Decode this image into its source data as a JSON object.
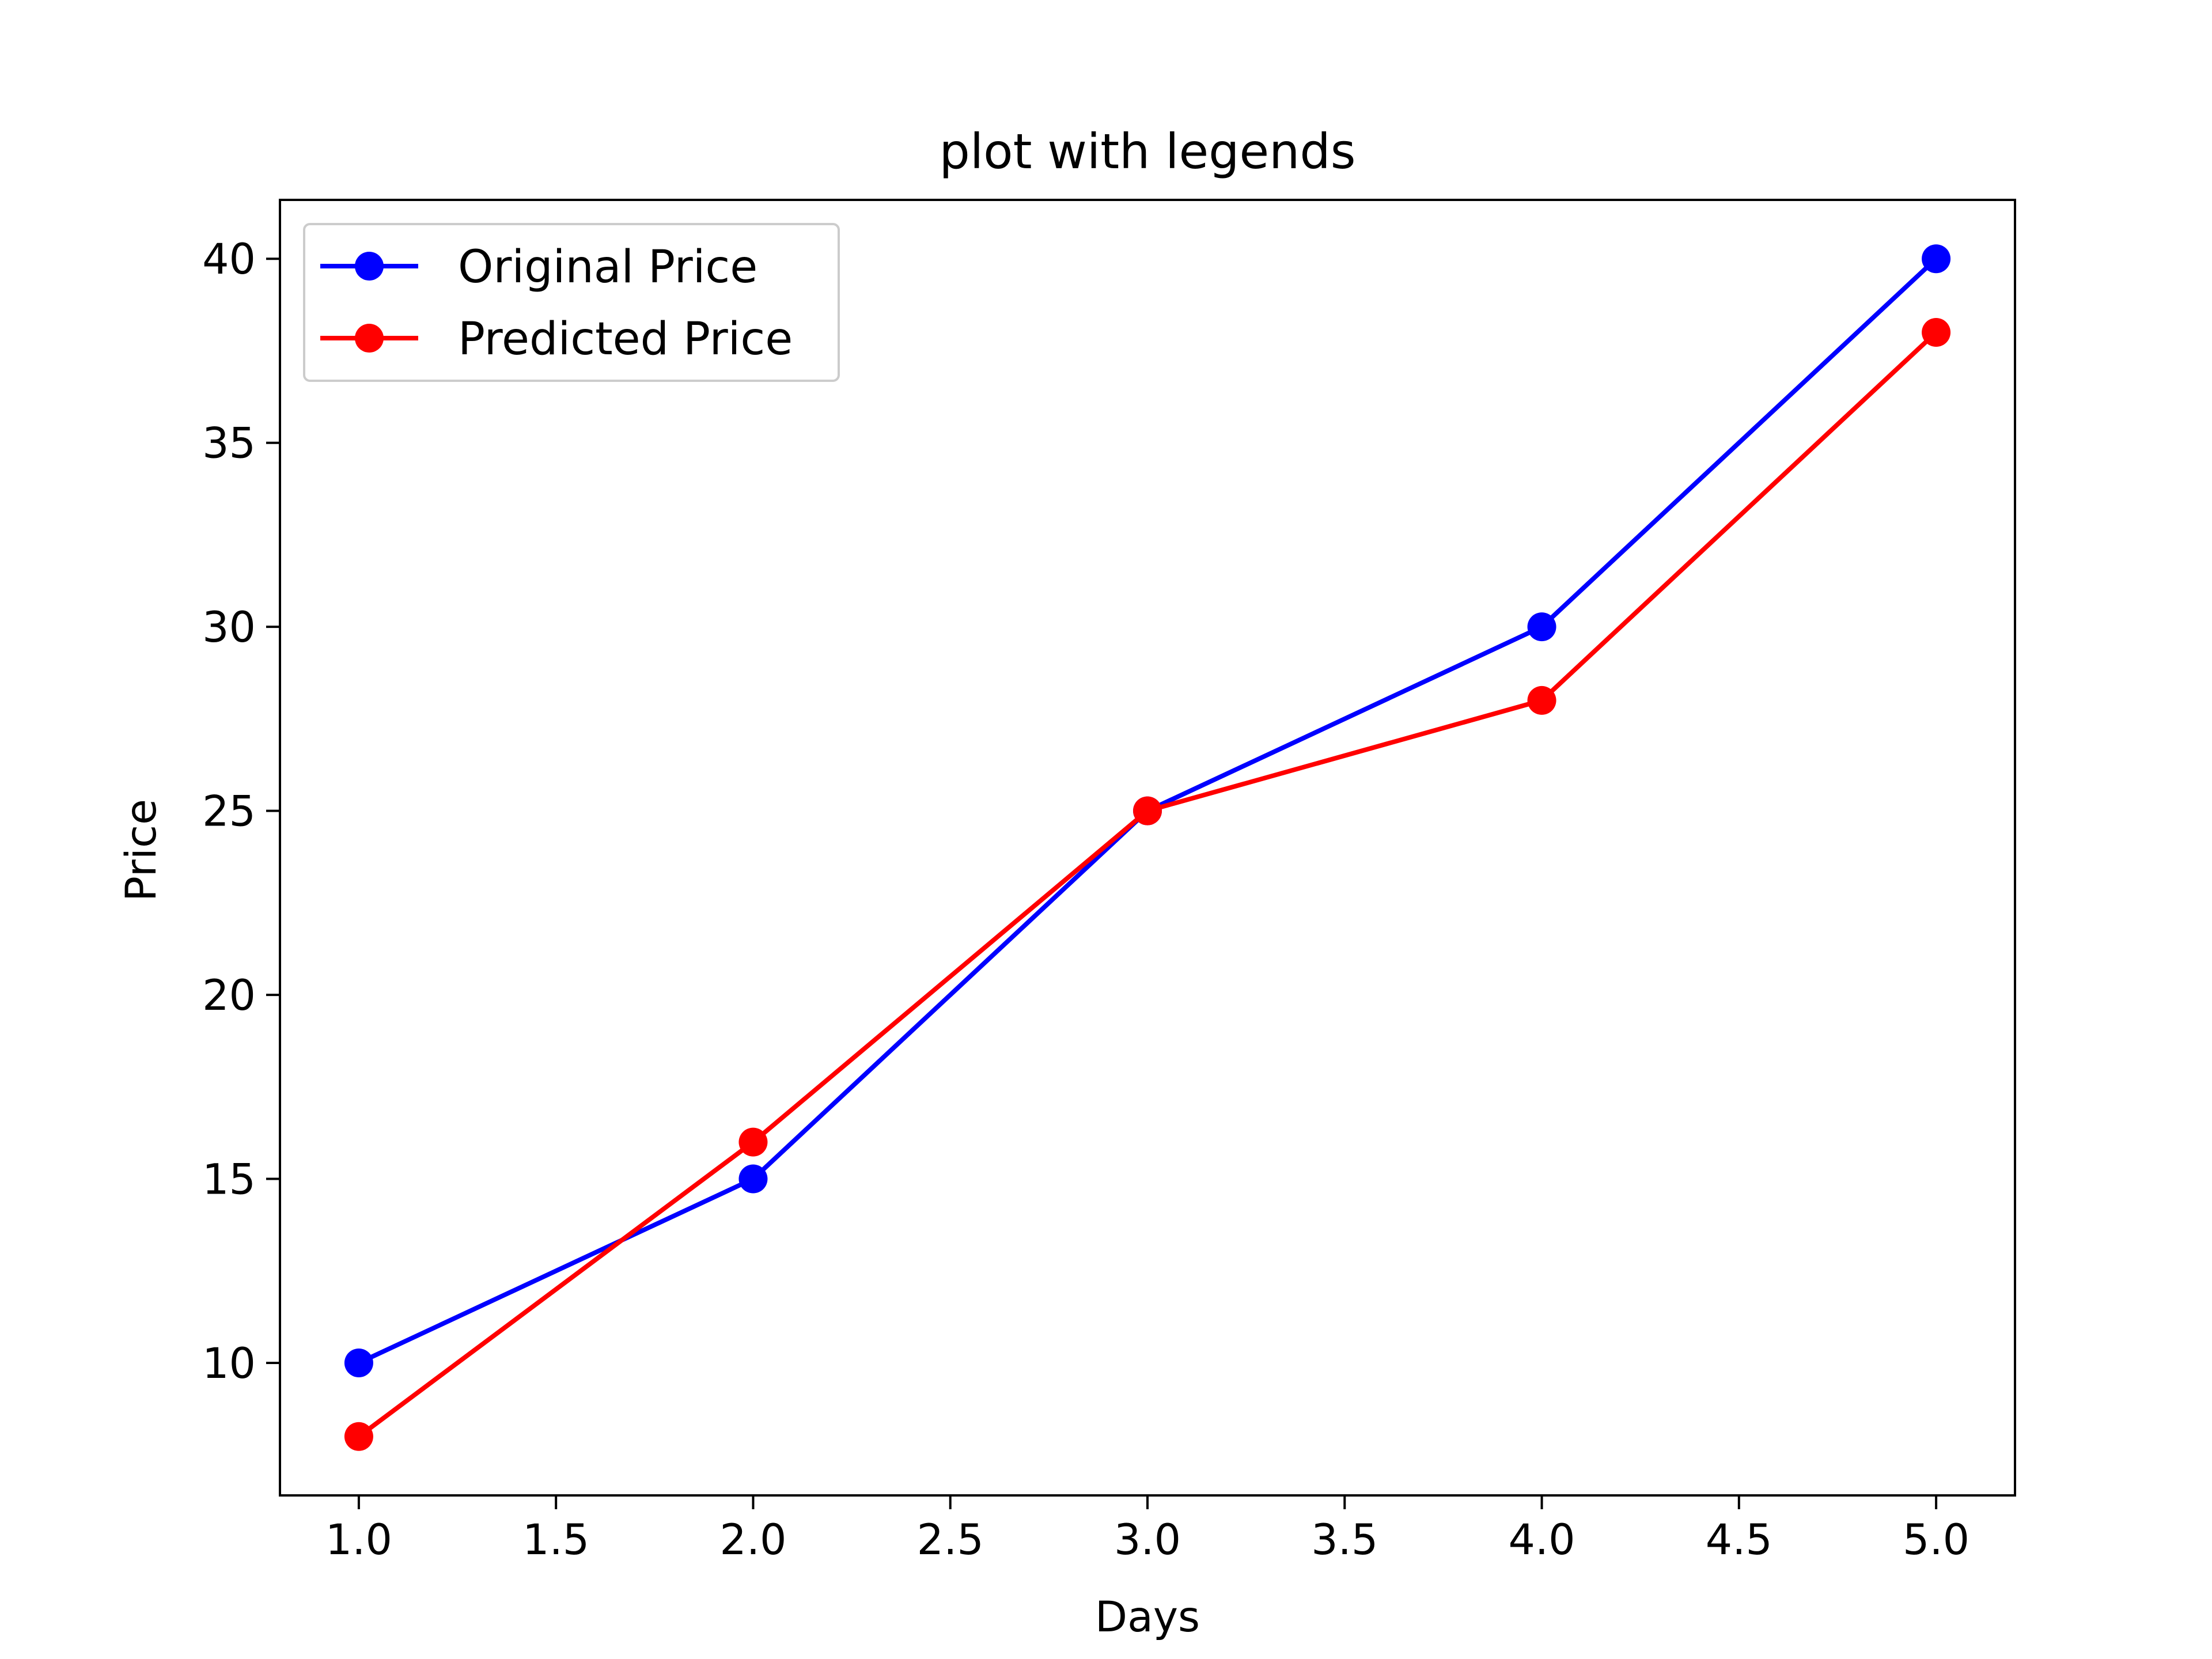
{
  "chart_data": {
    "type": "line",
    "title": "plot with legends",
    "xlabel": "Days",
    "ylabel": "Price",
    "x": [
      1,
      2,
      3,
      4,
      5
    ],
    "xlim": [
      0.8,
      5.2
    ],
    "ylim": [
      6.4,
      41.6
    ],
    "xticks": [
      1.0,
      1.5,
      2.0,
      2.5,
      3.0,
      3.5,
      4.0,
      4.5,
      5.0
    ],
    "xtick_labels": [
      "1.0",
      "1.5",
      "2.0",
      "2.5",
      "3.0",
      "3.5",
      "4.0",
      "4.5",
      "5.0"
    ],
    "yticks": [
      10,
      15,
      20,
      25,
      30,
      35,
      40
    ],
    "ytick_labels": [
      "10",
      "15",
      "20",
      "25",
      "30",
      "35",
      "40"
    ],
    "grid": false,
    "legend": "upper-left",
    "series": [
      {
        "name": "Original Price",
        "color": "#0000ff",
        "marker": "circle",
        "values": [
          10,
          15,
          25,
          30,
          40
        ]
      },
      {
        "name": "Predicted Price",
        "color": "#ff0000",
        "marker": "circle",
        "values": [
          8,
          16,
          25,
          28,
          38
        ]
      }
    ]
  }
}
